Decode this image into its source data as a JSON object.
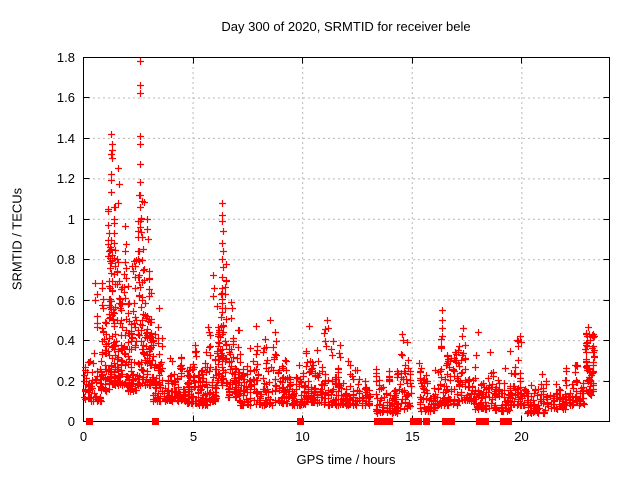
{
  "chart_data": {
    "type": "scatter",
    "title": "Day 300 of 2020, SRMTID for receiver bele",
    "xlabel": "GPS time / hours",
    "ylabel": "SRMTID / TECUs",
    "xlim": [
      0,
      24
    ],
    "ylim": [
      0,
      1.8
    ],
    "x_ticks": {
      "values": [
        0,
        5,
        10,
        15,
        20
      ],
      "labels": [
        "0",
        "5",
        "10",
        "15",
        "20"
      ]
    },
    "y_ticks": {
      "values": [
        0,
        0.2,
        0.4,
        0.6,
        0.8,
        1.0,
        1.2,
        1.4,
        1.6,
        1.8
      ],
      "labels": [
        "0",
        "0.2",
        "0.4",
        "0.6",
        "0.8",
        "1",
        "1.2",
        "1.4",
        "1.6",
        "1.8"
      ]
    },
    "grid": true,
    "legend": "none",
    "colors": {
      "marker": "#ff0000",
      "grid": "#b8b8b8",
      "axis": "#000000",
      "text": "#000000",
      "background": "#ffffff"
    },
    "marker": "plus",
    "zero_marker": "filled-square",
    "zero_markers_hours": [
      0.27,
      3.28,
      9.9,
      13.4,
      13.7,
      13.97,
      15.07,
      15.27,
      15.65,
      16.52,
      16.77,
      18.05,
      18.33,
      19.17,
      19.38
    ],
    "peak_points": [
      [
        0.57,
        0.68
      ],
      [
        0.62,
        0.63
      ],
      [
        0.53,
        0.6
      ],
      [
        1.12,
        1.05
      ],
      [
        1.15,
        1.04
      ],
      [
        1.13,
        0.97
      ],
      [
        1.17,
        0.93
      ],
      [
        1.28,
        1.42
      ],
      [
        1.31,
        1.37
      ],
      [
        1.33,
        1.34
      ],
      [
        1.3,
        1.32
      ],
      [
        1.32,
        1.3
      ],
      [
        1.29,
        1.22
      ],
      [
        1.27,
        1.19
      ],
      [
        1.3,
        1.13
      ],
      [
        1.6,
        1.25
      ],
      [
        1.62,
        1.17
      ],
      [
        1.58,
        1.08
      ],
      [
        2.58,
        1.78
      ],
      [
        2.6,
        1.66
      ],
      [
        2.61,
        1.62
      ],
      [
        2.59,
        1.41
      ],
      [
        2.62,
        1.37
      ],
      [
        2.6,
        1.27
      ],
      [
        2.61,
        1.18
      ],
      [
        2.62,
        1.12
      ],
      [
        2.58,
        1.06
      ],
      [
        2.63,
        1.0
      ],
      [
        2.6,
        0.96
      ],
      [
        2.93,
        1.0
      ],
      [
        2.9,
        0.95
      ],
      [
        2.96,
        0.9
      ],
      [
        5.95,
        0.72
      ],
      [
        5.99,
        0.66
      ],
      [
        5.92,
        0.62
      ],
      [
        6.33,
        1.08
      ],
      [
        6.36,
        1.02
      ],
      [
        6.34,
        0.99
      ],
      [
        6.37,
        0.94
      ],
      [
        6.35,
        0.88
      ],
      [
        6.39,
        0.84
      ],
      [
        6.32,
        0.8
      ],
      [
        6.38,
        0.76
      ],
      [
        6.36,
        0.71
      ],
      [
        6.34,
        0.66
      ],
      [
        8.55,
        0.5
      ],
      [
        10.32,
        0.47
      ],
      [
        11.15,
        0.5
      ],
      [
        11.2,
        0.46
      ],
      [
        14.55,
        0.43
      ],
      [
        14.6,
        0.4
      ],
      [
        16.37,
        0.55
      ],
      [
        16.36,
        0.5
      ],
      [
        16.38,
        0.46
      ],
      [
        16.37,
        0.42
      ],
      [
        16.35,
        0.37
      ],
      [
        17.35,
        0.46
      ],
      [
        17.3,
        0.42
      ],
      [
        18.0,
        0.44
      ],
      [
        19.95,
        0.42
      ],
      [
        20.0,
        0.39
      ],
      [
        23.05,
        0.465
      ],
      [
        23.1,
        0.43
      ],
      [
        23.15,
        0.4
      ]
    ],
    "cloud_segments": [
      {
        "t0": 0.02,
        "t1": 0.35,
        "n": 28,
        "y0": 0.11,
        "y1": 0.3,
        "p": 1.6
      },
      {
        "t0": 0.3,
        "t1": 0.85,
        "n": 38,
        "y0": 0.1,
        "y1": 0.6,
        "p": 2.4
      },
      {
        "t0": 0.8,
        "t1": 1.25,
        "n": 70,
        "y0": 0.15,
        "y1": 0.97,
        "p": 2.0
      },
      {
        "t0": 1.2,
        "t1": 1.5,
        "n": 75,
        "y0": 0.18,
        "y1": 1.1,
        "p": 2.1
      },
      {
        "t0": 1.5,
        "t1": 2.0,
        "n": 85,
        "y0": 0.18,
        "y1": 1.02,
        "p": 2.1
      },
      {
        "t0": 2.0,
        "t1": 2.45,
        "n": 75,
        "y0": 0.15,
        "y1": 0.88,
        "p": 2.0
      },
      {
        "t0": 2.45,
        "t1": 2.8,
        "n": 65,
        "y0": 0.18,
        "y1": 1.15,
        "p": 1.9
      },
      {
        "t0": 2.8,
        "t1": 3.15,
        "n": 60,
        "y0": 0.18,
        "y1": 0.92,
        "p": 1.9
      },
      {
        "t0": 3.1,
        "t1": 3.55,
        "n": 50,
        "y0": 0.1,
        "y1": 0.62,
        "p": 2.0
      },
      {
        "t0": 3.5,
        "t1": 4.1,
        "n": 48,
        "y0": 0.1,
        "y1": 0.42,
        "p": 1.8
      },
      {
        "t0": 4.1,
        "t1": 4.7,
        "n": 52,
        "y0": 0.1,
        "y1": 0.34,
        "p": 1.7
      },
      {
        "t0": 4.7,
        "t1": 5.2,
        "n": 55,
        "y0": 0.09,
        "y1": 0.38,
        "p": 1.7
      },
      {
        "t0": 5.2,
        "t1": 5.7,
        "n": 50,
        "y0": 0.08,
        "y1": 0.35,
        "p": 1.7
      },
      {
        "t0": 5.7,
        "t1": 6.1,
        "n": 45,
        "y0": 0.1,
        "y1": 0.55,
        "p": 2.2
      },
      {
        "t0": 6.1,
        "t1": 6.6,
        "n": 75,
        "y0": 0.18,
        "y1": 1.0,
        "p": 1.9
      },
      {
        "t0": 6.6,
        "t1": 7.15,
        "n": 60,
        "y0": 0.12,
        "y1": 0.6,
        "p": 2.0
      },
      {
        "t0": 7.1,
        "t1": 7.85,
        "n": 62,
        "y0": 0.08,
        "y1": 0.4,
        "p": 1.9
      },
      {
        "t0": 7.85,
        "t1": 8.7,
        "n": 68,
        "y0": 0.08,
        "y1": 0.48,
        "p": 2.1
      },
      {
        "t0": 8.7,
        "t1": 9.5,
        "n": 70,
        "y0": 0.09,
        "y1": 0.45,
        "p": 2.0
      },
      {
        "t0": 9.5,
        "t1": 10.15,
        "n": 58,
        "y0": 0.08,
        "y1": 0.33,
        "p": 1.8
      },
      {
        "t0": 10.15,
        "t1": 10.95,
        "n": 66,
        "y0": 0.09,
        "y1": 0.46,
        "p": 2.0
      },
      {
        "t0": 10.95,
        "t1": 11.75,
        "n": 66,
        "y0": 0.08,
        "y1": 0.48,
        "p": 2.1
      },
      {
        "t0": 11.75,
        "t1": 12.55,
        "n": 62,
        "y0": 0.08,
        "y1": 0.34,
        "p": 1.9
      },
      {
        "t0": 12.55,
        "t1": 13.1,
        "n": 36,
        "y0": 0.08,
        "y1": 0.24,
        "p": 1.7
      },
      {
        "t0": 13.32,
        "t1": 14.35,
        "n": 72,
        "y0": 0.04,
        "y1": 0.3,
        "p": 1.7
      },
      {
        "t0": 14.15,
        "t1": 15.0,
        "n": 55,
        "y0": 0.06,
        "y1": 0.4,
        "p": 1.9
      },
      {
        "t0": 15.3,
        "t1": 16.1,
        "n": 58,
        "y0": 0.05,
        "y1": 0.3,
        "p": 1.7
      },
      {
        "t0": 16.1,
        "t1": 16.55,
        "n": 38,
        "y0": 0.08,
        "y1": 0.42,
        "p": 2.2
      },
      {
        "t0": 16.55,
        "t1": 17.1,
        "n": 44,
        "y0": 0.08,
        "y1": 0.36,
        "p": 1.8
      },
      {
        "t0": 17.05,
        "t1": 17.8,
        "n": 58,
        "y0": 0.1,
        "y1": 0.44,
        "p": 1.9
      },
      {
        "t0": 17.8,
        "t1": 18.6,
        "n": 60,
        "y0": 0.06,
        "y1": 0.4,
        "p": 2.0
      },
      {
        "t0": 18.6,
        "t1": 19.45,
        "n": 58,
        "y0": 0.05,
        "y1": 0.28,
        "p": 1.7
      },
      {
        "t0": 19.45,
        "t1": 20.2,
        "n": 56,
        "y0": 0.08,
        "y1": 0.42,
        "p": 1.9
      },
      {
        "t0": 20.2,
        "t1": 21.1,
        "n": 58,
        "y0": 0.04,
        "y1": 0.24,
        "p": 1.6
      },
      {
        "t0": 21.1,
        "t1": 22.1,
        "n": 64,
        "y0": 0.06,
        "y1": 0.27,
        "p": 1.6
      },
      {
        "t0": 22.1,
        "t1": 22.9,
        "n": 55,
        "y0": 0.08,
        "y1": 0.3,
        "p": 1.7
      },
      {
        "t0": 22.9,
        "t1": 23.35,
        "n": 60,
        "y0": 0.12,
        "y1": 0.44,
        "p": 0.9
      }
    ],
    "seed": 300
  }
}
